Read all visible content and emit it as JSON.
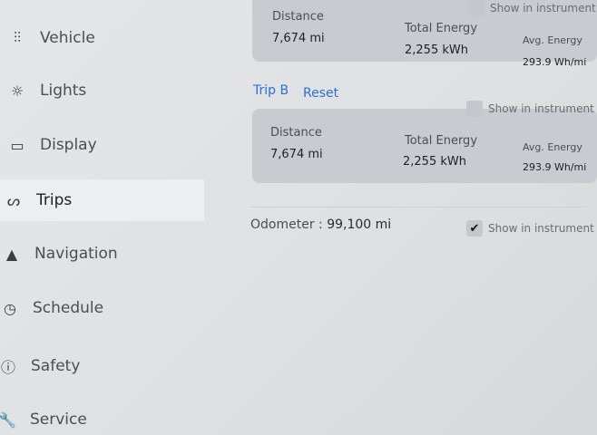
{
  "sidebar": {
    "items": [
      {
        "label": "Vehicle",
        "icon": "sliders-icon"
      },
      {
        "label": "Lights",
        "icon": "sun-icon"
      },
      {
        "label": "Display",
        "icon": "display-icon"
      },
      {
        "label": "Trips",
        "icon": "trips-icon",
        "active": true
      },
      {
        "label": "Navigation",
        "icon": "navigation-icon"
      },
      {
        "label": "Schedule",
        "icon": "clock-icon"
      },
      {
        "label": "Safety",
        "icon": "alert-icon"
      },
      {
        "label": "Service",
        "icon": "wrench-icon"
      }
    ]
  },
  "trip_a": {
    "distance_label": "Distance",
    "distance": "7,674 mi",
    "energy_label": "Total Energy",
    "energy": "2,255 kWh",
    "avg_label": "Avg. Energy",
    "avg": "293.9 Wh/mi",
    "show_label": "Show in instrument",
    "show_checked": false
  },
  "trip_b": {
    "title": "Trip B",
    "reset": "Reset",
    "distance_label": "Distance",
    "distance": "7,674 mi",
    "energy_label": "Total Energy",
    "energy": "2,255 kWh",
    "avg_label": "Avg. Energy",
    "avg": "293.9 Wh/mi",
    "show_label": "Show in instrument",
    "show_checked": false
  },
  "odometer": {
    "label": "Odometer",
    "separator": ":",
    "value": "99,100 mi",
    "show_label": "Show in instrument",
    "show_checked": true
  },
  "colors": {
    "accent": "#2b6fd6"
  }
}
